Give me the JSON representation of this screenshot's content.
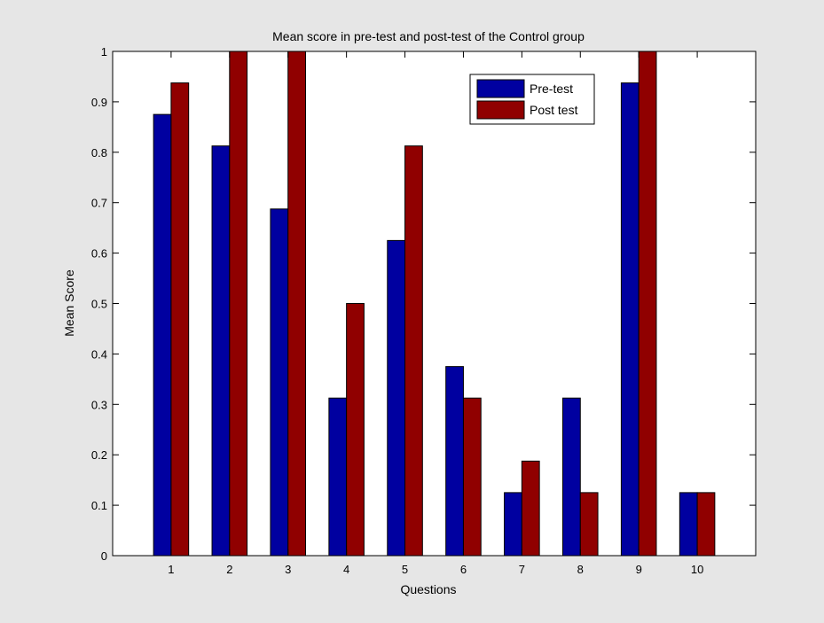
{
  "window": {
    "background": "#e6e6e6"
  },
  "chart_data": {
    "type": "bar",
    "title": "Mean score in pre-test and post-test of the Control group",
    "xlabel": "Questions",
    "ylabel": "Mean Score",
    "categories": [
      "1",
      "2",
      "3",
      "4",
      "5",
      "6",
      "7",
      "8",
      "9",
      "10"
    ],
    "series": [
      {
        "name": "Pre-test",
        "color": "#0000a0",
        "values": [
          0.875,
          0.8125,
          0.6875,
          0.3125,
          0.625,
          0.375,
          0.125,
          0.3125,
          0.9375,
          0.125
        ]
      },
      {
        "name": "Post test",
        "color": "#900000",
        "values": [
          0.9375,
          1.0,
          1.0,
          0.5,
          0.8125,
          0.3125,
          0.1875,
          0.125,
          1.0,
          0.125
        ]
      }
    ],
    "ylim": [
      0,
      1
    ],
    "xlim": [
      0,
      11
    ],
    "yticks": [
      "0",
      "0.1",
      "0.2",
      "0.3",
      "0.4",
      "0.5",
      "0.6",
      "0.7",
      "0.8",
      "0.9",
      "1"
    ],
    "ytick_values": [
      0,
      0.1,
      0.2,
      0.3,
      0.4,
      0.5,
      0.6,
      0.7,
      0.8,
      0.9,
      1.0
    ],
    "grid": false,
    "legend_position": "top-right"
  }
}
